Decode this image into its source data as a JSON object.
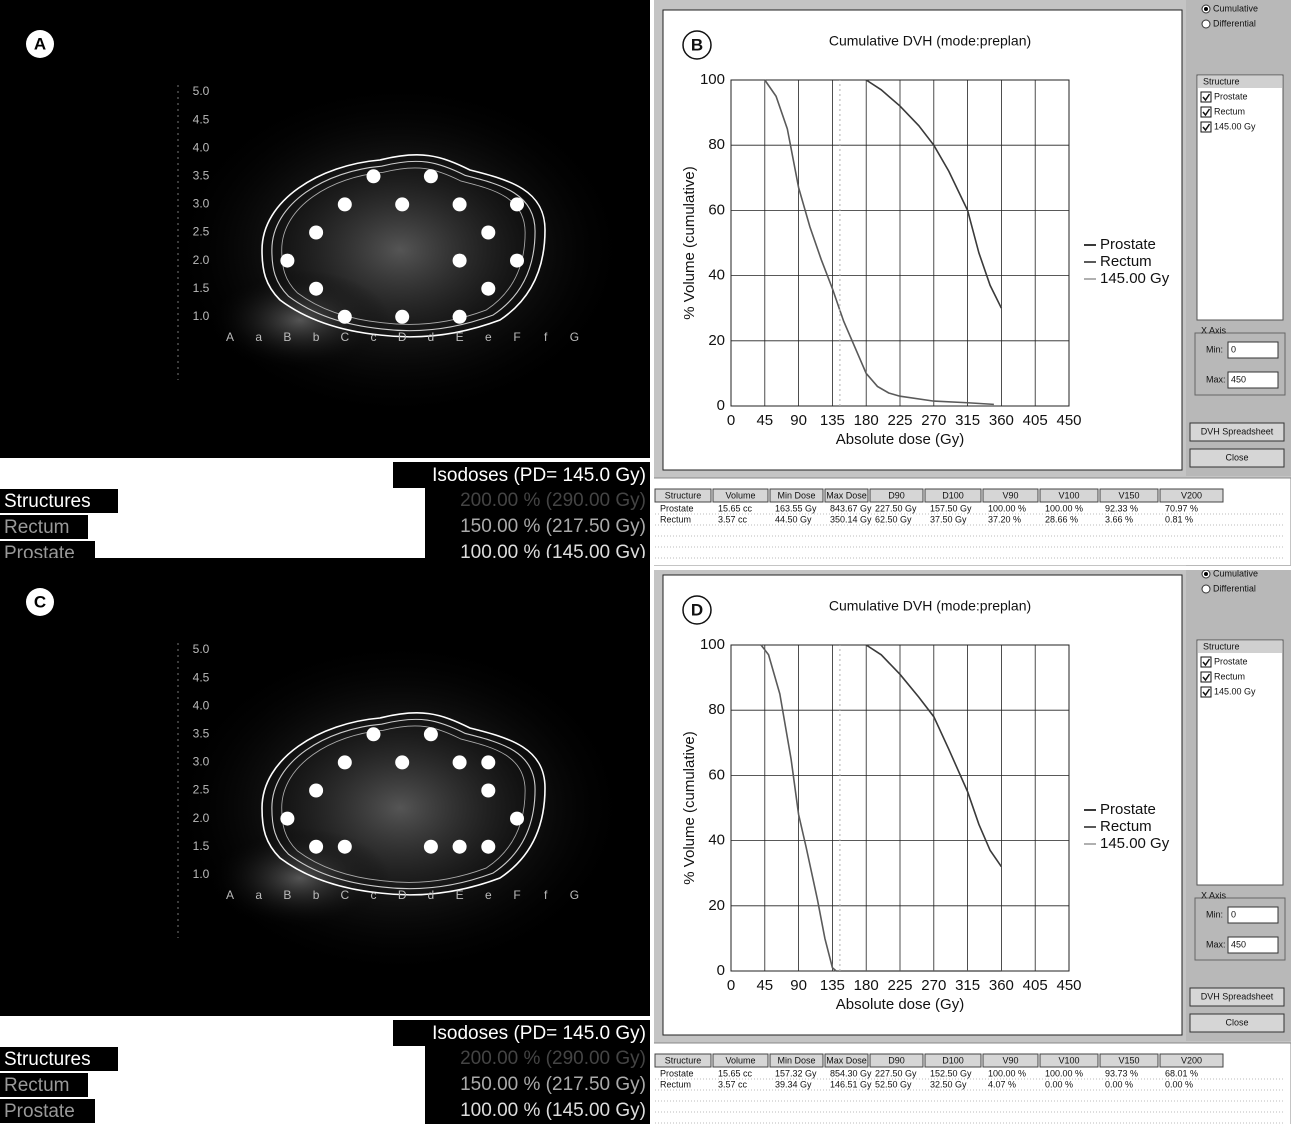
{
  "images": [
    {
      "label": "A",
      "row_labels": [
        "5.0",
        "4.5",
        "4.0",
        "3.5",
        "3.0",
        "2.5",
        "2.0",
        "1.5",
        "1.0"
      ],
      "col_labels": [
        "A",
        "a",
        "B",
        "b",
        "C",
        "c",
        "D",
        "d",
        "E",
        "e",
        "F",
        "f",
        "G"
      ],
      "seeds": [
        [
          5,
          3
        ],
        [
          7,
          3
        ],
        [
          4,
          4
        ],
        [
          6,
          4
        ],
        [
          8,
          4
        ],
        [
          10,
          4
        ],
        [
          3,
          5
        ],
        [
          9,
          5
        ],
        [
          2,
          6
        ],
        [
          8,
          6
        ],
        [
          10,
          6
        ],
        [
          3,
          7
        ],
        [
          9,
          7
        ],
        [
          4,
          8
        ],
        [
          6,
          8
        ],
        [
          8,
          8
        ]
      ],
      "isodose_title": "Isodoses (PD= 145.0 Gy)",
      "isodose_levels": [
        "200.00 % (290.00 Gy)",
        "150.00 % (217.50 Gy)",
        "100.00 % (145.00 Gy)"
      ],
      "structures_title": "Structures",
      "structures": [
        "Rectum",
        "Prostate"
      ]
    },
    {
      "label": "C",
      "row_labels": [
        "5.0",
        "4.5",
        "4.0",
        "3.5",
        "3.0",
        "2.5",
        "2.0",
        "1.5",
        "1.0"
      ],
      "col_labels": [
        "A",
        "a",
        "B",
        "b",
        "C",
        "c",
        "D",
        "d",
        "E",
        "e",
        "F",
        "f",
        "G"
      ],
      "seeds": [
        [
          5,
          3
        ],
        [
          7,
          3
        ],
        [
          4,
          4
        ],
        [
          6,
          4
        ],
        [
          8,
          4
        ],
        [
          9,
          4
        ],
        [
          3,
          5
        ],
        [
          9,
          5
        ],
        [
          2,
          6
        ],
        [
          10,
          6
        ],
        [
          3,
          7
        ],
        [
          4,
          7
        ],
        [
          7,
          7
        ],
        [
          8,
          7
        ],
        [
          9,
          7
        ]
      ],
      "isodose_title": "Isodoses (PD= 145.0 Gy)",
      "isodose_levels": [
        "200.00 % (290.00 Gy)",
        "150.00 % (217.50 Gy)",
        "100.00 % (145.00 Gy)"
      ],
      "structures_title": "Structures",
      "structures": [
        "Rectum",
        "Prostate"
      ]
    }
  ],
  "chart_data": [
    {
      "type": "line",
      "label": "B",
      "title": "Cumulative DVH (mode:preplan)",
      "x_label": "Absolute dose (Gy)",
      "y_label": "% Volume (cumulative)",
      "xlim": [
        0,
        450
      ],
      "xticks": [
        0,
        45,
        90,
        135,
        180,
        225,
        270,
        315,
        360,
        405,
        450
      ],
      "ylim": [
        0,
        100
      ],
      "yticks": [
        0,
        20,
        40,
        60,
        80,
        100
      ],
      "grid": true,
      "series": [
        {
          "name": "Prostate",
          "color": "#3a3a3a",
          "x": [
            180,
            200,
            225,
            250,
            270,
            290,
            315,
            330,
            345,
            360
          ],
          "values": [
            100,
            97,
            92,
            86,
            80,
            72,
            60,
            47,
            37,
            30
          ]
        },
        {
          "name": "Rectum",
          "color": "#5a5a5a",
          "x": [
            45,
            60,
            75,
            90,
            105,
            120,
            135,
            150,
            165,
            180,
            195,
            210,
            225,
            270,
            315,
            350
          ],
          "values": [
            100,
            95,
            85,
            67,
            55,
            45,
            36,
            26,
            18,
            10,
            6,
            4,
            3,
            1.5,
            1,
            0.5
          ]
        },
        {
          "name": "145.00 Gy",
          "color": "#b0b0b0",
          "x": [
            145,
            145
          ],
          "values": [
            0,
            100
          ]
        }
      ]
    },
    {
      "type": "line",
      "label": "D",
      "title": "Cumulative DVH (mode:preplan)",
      "x_label": "Absolute dose (Gy)",
      "y_label": "% Volume (cumulative)",
      "xlim": [
        0,
        450
      ],
      "xticks": [
        0,
        45,
        90,
        135,
        180,
        225,
        270,
        315,
        360,
        405,
        450
      ],
      "ylim": [
        0,
        100
      ],
      "yticks": [
        0,
        20,
        40,
        60,
        80,
        100
      ],
      "grid": true,
      "series": [
        {
          "name": "Prostate",
          "color": "#3a3a3a",
          "x": [
            180,
            200,
            225,
            250,
            270,
            290,
            315,
            330,
            345,
            360
          ],
          "values": [
            100,
            97,
            91,
            84,
            78,
            68,
            55,
            45,
            37,
            32
          ]
        },
        {
          "name": "Rectum",
          "color": "#5a5a5a",
          "x": [
            40,
            50,
            65,
            80,
            90,
            100,
            115,
            125,
            135,
            140,
            360
          ],
          "values": [
            100,
            97,
            85,
            65,
            48,
            38,
            22,
            10,
            1,
            0,
            0
          ]
        },
        {
          "name": "145.00 Gy",
          "color": "#b0b0b0",
          "x": [
            145,
            145
          ],
          "values": [
            0,
            100
          ]
        }
      ]
    }
  ],
  "panels": [
    {
      "options": [
        "Cumulative",
        "Differential"
      ],
      "structure_header": "Structure",
      "structure_items": [
        "Prostate",
        "Rectum",
        "145.00 Gy"
      ],
      "x_axis_group": "X Axis",
      "min_label": "Min:",
      "min_value": "0",
      "max_label": "Max:",
      "max_value": "450",
      "buttons": [
        "DVH Spreadsheet",
        "Close"
      ],
      "table": {
        "header": [
          "Structure",
          "Volume",
          "Min Dose",
          "Max Dose",
          "D90",
          "D100",
          "V90",
          "V100",
          "V150",
          "V200"
        ],
        "rows": [
          [
            "Prostate",
            "15.65 cc",
            "163.55 Gy",
            "843.67 Gy",
            "227.50 Gy",
            "157.50 Gy",
            "100.00 %",
            "100.00 %",
            "92.33 %",
            "70.97 %"
          ],
          [
            "Rectum",
            "3.57 cc",
            "44.50 Gy",
            "350.14 Gy",
            "62.50 Gy",
            "37.50 Gy",
            "37.20 %",
            "28.66 %",
            "3.66 %",
            "0.81 %"
          ]
        ]
      }
    },
    {
      "options": [
        "Cumulative",
        "Differential"
      ],
      "structure_header": "Structure",
      "structure_items": [
        "Prostate",
        "Rectum",
        "145.00 Gy"
      ],
      "x_axis_group": "X Axis",
      "min_label": "Min:",
      "min_value": "0",
      "max_label": "Max:",
      "max_value": "450",
      "buttons": [
        "DVH Spreadsheet",
        "Close"
      ],
      "table": {
        "header": [
          "Structure",
          "Volume",
          "Min Dose",
          "Max Dose",
          "D90",
          "D100",
          "V90",
          "V100",
          "V150",
          "V200"
        ],
        "rows": [
          [
            "Prostate",
            "15.65 cc",
            "157.32 Gy",
            "854.30 Gy",
            "227.50 Gy",
            "152.50 Gy",
            "100.00 %",
            "100.00 %",
            "93.73 %",
            "68.01 %"
          ],
          [
            "Rectum",
            "3.57 cc",
            "39.34 Gy",
            "146.51 Gy",
            "52.50 Gy",
            "32.50 Gy",
            "4.07 %",
            "0.00 %",
            "0.00 %",
            "0.00 %"
          ]
        ]
      }
    }
  ]
}
